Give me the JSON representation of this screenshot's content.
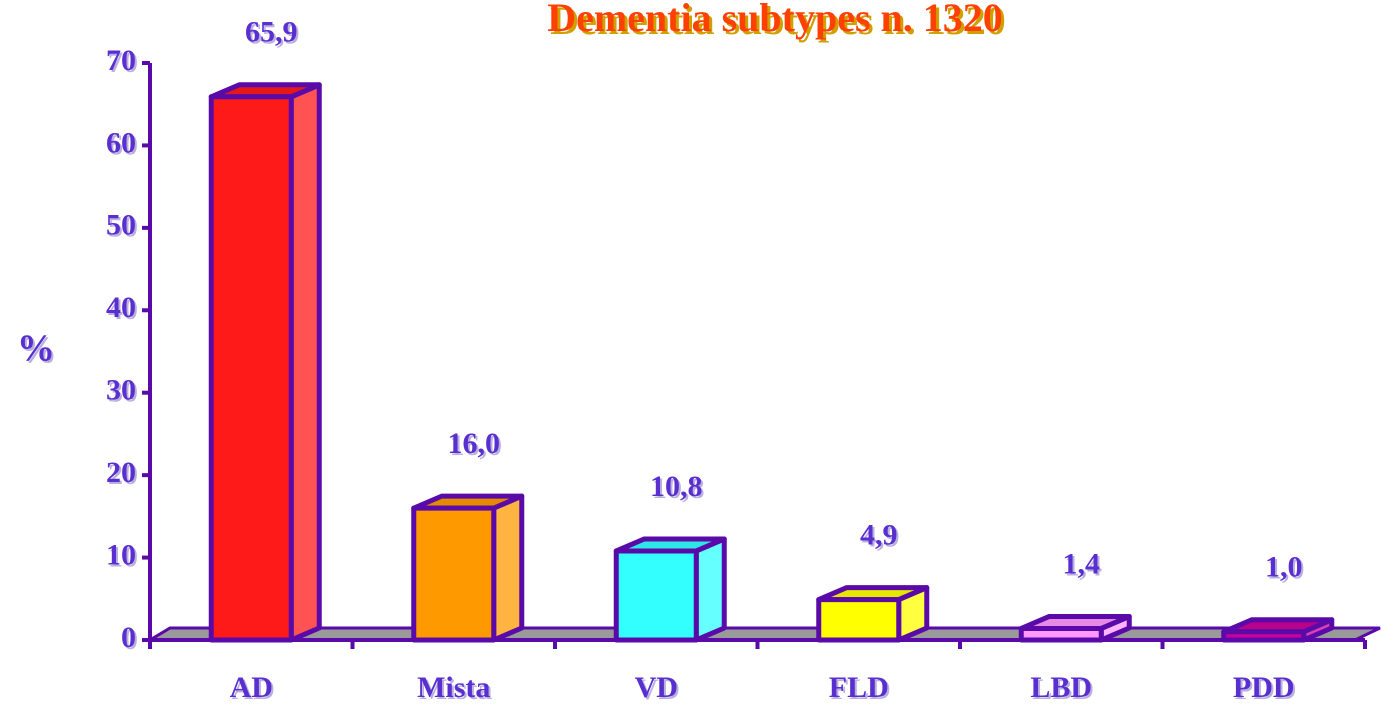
{
  "chart_data": {
    "type": "bar3d",
    "title": "Dementia subtypes  n. 1320",
    "ylabel": "%",
    "categories": [
      "AD",
      "Mista",
      "VD",
      "FLD",
      "LBD",
      "PDD"
    ],
    "values": [
      65.9,
      16.0,
      10.8,
      4.9,
      1.4,
      1.0
    ],
    "value_labels": [
      "65,9",
      "16,0",
      "10,8",
      "4,9",
      "1,4",
      "1,0"
    ],
    "colors": [
      "#ff1a1a",
      "#ff9900",
      "#33ffff",
      "#ffff00",
      "#ff99ff",
      "#cc0099"
    ],
    "ylim": [
      0,
      70
    ],
    "yticks": [
      0,
      10,
      20,
      30,
      40,
      50,
      60,
      70
    ]
  }
}
